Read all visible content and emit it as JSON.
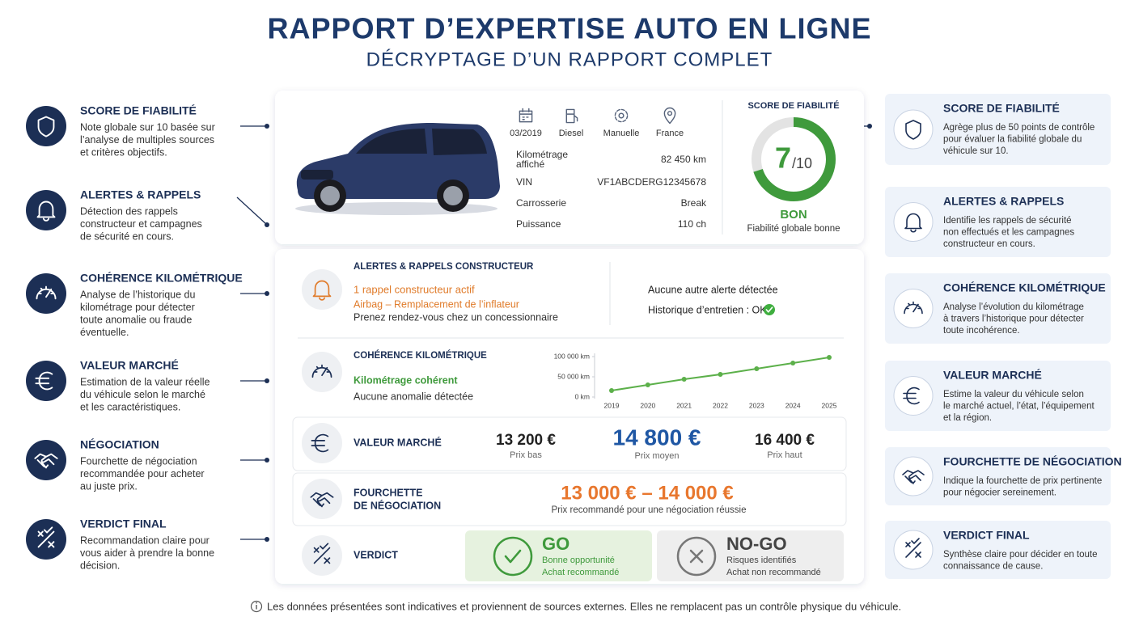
{
  "header": {
    "title": "RAPPORT D’EXPERTISE AUTO EN LIGNE",
    "subtitle": "DÉCRYPTAGE D’UN RAPPORT COMPLET"
  },
  "left_features": [
    {
      "title": "SCORE DE FIABILITÉ",
      "lines": [
        "Note globale sur 10 basée sur",
        "l’analyse de multiples sources",
        "et critères objectifs."
      ]
    },
    {
      "title": "ALERTES & RAPPELS",
      "lines": [
        "Détection des rappels",
        "constructeur et campagnes",
        "de sécurité en cours."
      ]
    },
    {
      "title": "COHÉRENCE KILOMÉTRIQUE",
      "lines": [
        "Analyse de l’historique du",
        "kilométrage pour détecter",
        "toute anomalie ou fraude",
        "éventuelle."
      ]
    },
    {
      "title": "VALEUR MARCHÉ",
      "lines": [
        "Estimation de la valeur réelle",
        "du véhicule selon le marché",
        "et les caractéristiques."
      ]
    },
    {
      "title": "NÉGOCIATION",
      "lines": [
        "Fourchette de négociation",
        "recommandée pour acheter",
        "au juste prix."
      ]
    },
    {
      "title": "VERDICT FINAL",
      "lines": [
        "Recommandation claire pour",
        "vous aider à prendre la bonne",
        "décision."
      ]
    }
  ],
  "right_features": [
    {
      "title": "SCORE DE FIABILITÉ",
      "lines": [
        "Agrège plus de 50 points de contrôle",
        "pour évaluer la fiabilité globale du",
        "véhicule sur 10."
      ]
    },
    {
      "title": "ALERTES & RAPPELS",
      "lines": [
        "Identifie les rappels de sécurité",
        "non effectués et les campagnes",
        "constructeur en cours."
      ]
    },
    {
      "title": "COHÉRENCE KILOMÉTRIQUE",
      "lines": [
        "Analyse l’évolution du kilométrage",
        "à travers l’historique pour détecter",
        "toute incohérence."
      ]
    },
    {
      "title": "VALEUR MARCHÉ",
      "lines": [
        "Estime la valeur du véhicule selon",
        "le marché actuel, l’état, l’équipement",
        "et la région."
      ]
    },
    {
      "title": "FOURCHETTE DE NÉGOCIATION",
      "lines": [
        "Indique la fourchette de prix pertinente",
        "pour négocier sereinement."
      ]
    },
    {
      "title": "VERDICT FINAL",
      "lines": [
        "Synthèse claire pour décider en toute",
        "connaissance de cause."
      ]
    }
  ],
  "vehicle": {
    "badges": [
      "03/2019",
      "Diesel",
      "Manuelle",
      "France"
    ],
    "rows": [
      {
        "label": [
          "Kilométrage",
          "affiché"
        ],
        "value": "82 450 km"
      },
      {
        "label": [
          "VIN"
        ],
        "value": "VF1ABCDERG12345678"
      },
      {
        "label": [
          "Carrosserie"
        ],
        "value": "Break"
      },
      {
        "label": [
          "Puissance"
        ],
        "value": "110 ch"
      }
    ]
  },
  "score": {
    "title": "SCORE DE FIABILITÉ",
    "value": 7,
    "max": {
      "value": 10,
      "label": "/10"
    },
    "rating": "BON",
    "caption": "Fiabilité globale bonne"
  },
  "alerts": {
    "title": "ALERTES & RAPPELS CONSTRUCTEUR",
    "headline": "1 rappel constructeur actif",
    "detail": "Airbag – Remplacement de l’inflateur",
    "advice": "Prenez rendez-vous chez un concessionnaire",
    "other": "Aucune autre alerte détectée",
    "history": "Historique d’entretien : OK"
  },
  "mileage": {
    "title": "COHÉRENCE KILOMÉTRIQUE",
    "status": "Kilométrage cohérent",
    "detail": "Aucune anomalie détectée"
  },
  "chart_data": {
    "type": "line",
    "categories": [
      "2019",
      "2020",
      "2021",
      "2022",
      "2023",
      "2024",
      "2025"
    ],
    "values": [
      16000,
      30000,
      44000,
      56000,
      70000,
      84000,
      98000
    ],
    "color": "#5cb04a",
    "ylim": [
      0,
      100000
    ],
    "yticks": [
      {
        "value": 0,
        "label": "0 km"
      },
      {
        "value": 50000,
        "label": "50 000 km"
      },
      {
        "value": 100000,
        "label": "100 000 km"
      }
    ]
  },
  "market": {
    "title": "VALEUR MARCHÉ",
    "low": {
      "price": "13 200 €",
      "label": "Prix bas"
    },
    "mid": {
      "price": "14 800 €",
      "label": "Prix moyen"
    },
    "high": {
      "price": "16 400 €",
      "label": "Prix haut"
    }
  },
  "negotiation": {
    "title": [
      "FOURCHETTE",
      "DE NÉGOCIATION"
    ],
    "range": "13 000 € – 14 000 €",
    "caption": "Prix recommandé pour une négociation réussie"
  },
  "verdict": {
    "title": "VERDICT",
    "go": {
      "label": "GO",
      "lines": [
        "Bonne opportunité",
        "Achat recommandé"
      ]
    },
    "nogo": {
      "label": "NO-GO",
      "lines": [
        "Risques identifiés",
        "Achat non recommandé"
      ]
    }
  },
  "footer": {
    "note": "Les données présentées sont indicatives et proviennent de sources externes. Elles ne remplacent pas un contrôle physique du véhicule."
  }
}
